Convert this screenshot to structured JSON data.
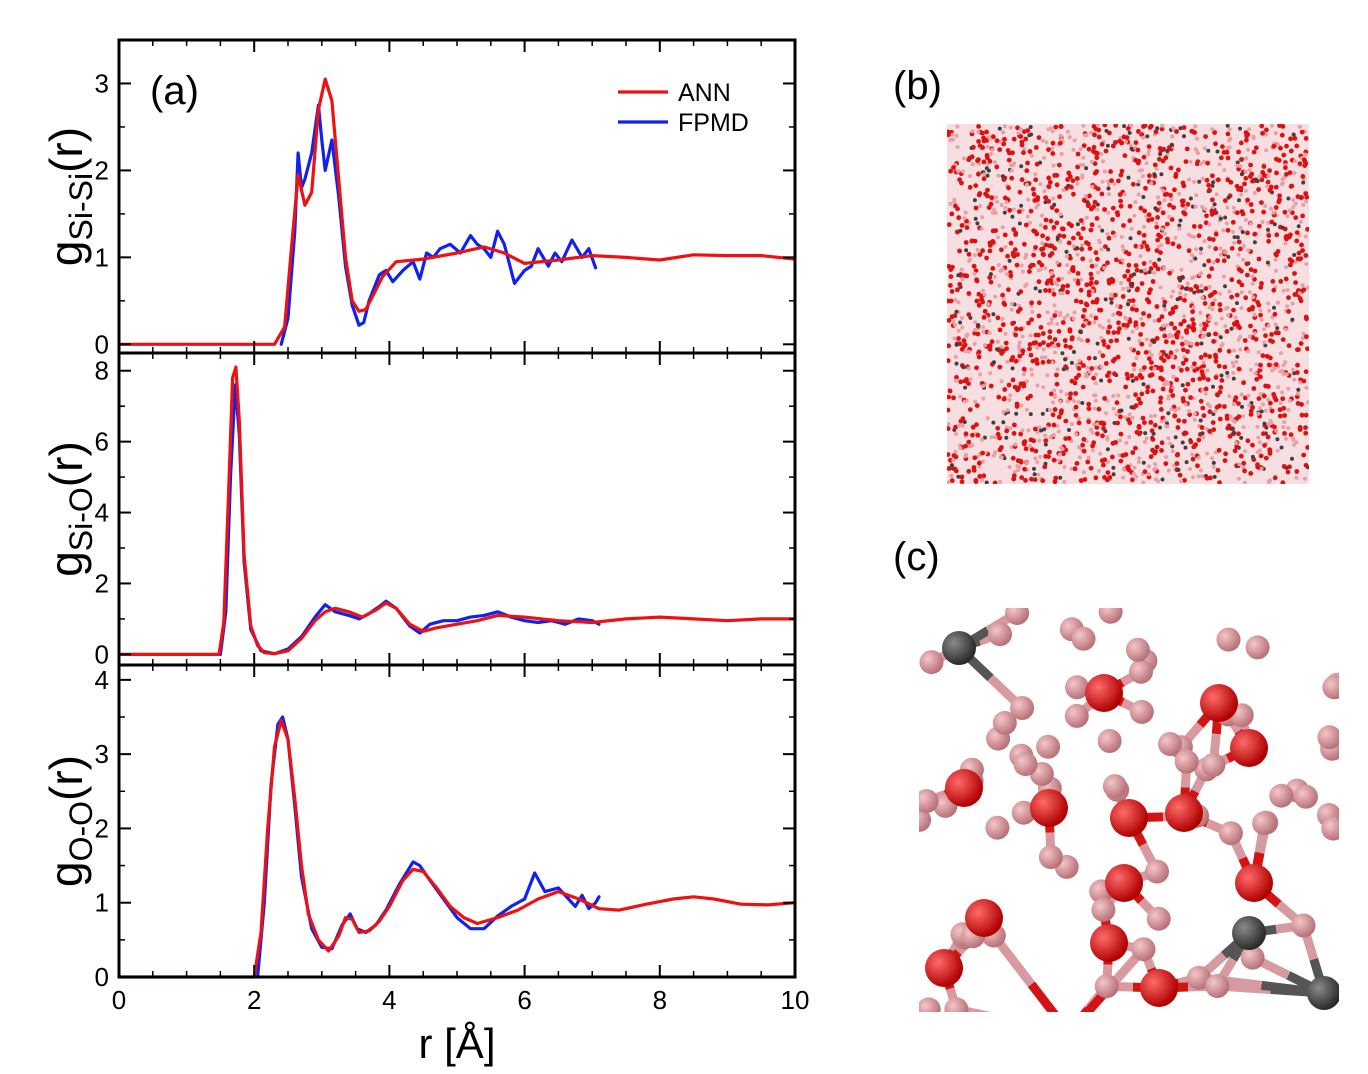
{
  "panels": {
    "a_label": "(a)",
    "b_label": "(b)",
    "c_label": "(c)"
  },
  "legend": {
    "items": [
      "ANN",
      "FPMD"
    ]
  },
  "colors": {
    "ann": "#ee1111",
    "fpmd": "#1122ee",
    "oxygen": "#dd1111",
    "silicon_light": "#e8a0a6",
    "carbon_dark": "#404040"
  },
  "chart_data": [
    {
      "type": "line",
      "panel": "a-top",
      "ylabel_main": "g",
      "ylabel_sub": "Si-Si",
      "ylabel_end": "(r)",
      "xlim": [
        0,
        10
      ],
      "ylim": [
        -0.1,
        3.5
      ],
      "yticks": [
        0,
        1,
        2,
        3
      ],
      "series": [
        {
          "name": "ANN",
          "x": [
            0,
            2.3,
            2.45,
            2.55,
            2.65,
            2.75,
            2.85,
            2.95,
            3.05,
            3.15,
            3.25,
            3.35,
            3.45,
            3.55,
            3.65,
            3.75,
            3.9,
            4.1,
            4.5,
            5.0,
            5.4,
            5.7,
            6.0,
            6.5,
            7.0,
            7.5,
            8.0,
            8.5,
            9.0,
            9.5,
            10.0
          ],
          "y": [
            0,
            0,
            0.2,
            1.1,
            1.95,
            1.6,
            1.75,
            2.7,
            3.05,
            2.8,
            1.9,
            1.0,
            0.5,
            0.38,
            0.4,
            0.55,
            0.78,
            0.95,
            0.98,
            1.05,
            1.12,
            1.05,
            0.93,
            0.97,
            1.02,
            1.0,
            0.97,
            1.03,
            1.02,
            1.02,
            0.98
          ]
        },
        {
          "name": "FPMD",
          "x": [
            2.4,
            2.5,
            2.6,
            2.65,
            2.7,
            2.75,
            2.85,
            2.95,
            3.0,
            3.05,
            3.15,
            3.25,
            3.35,
            3.45,
            3.55,
            3.62,
            3.7,
            3.85,
            3.95,
            4.05,
            4.2,
            4.35,
            4.45,
            4.55,
            4.65,
            4.75,
            4.9,
            5.05,
            5.2,
            5.3,
            5.4,
            5.5,
            5.6,
            5.7,
            5.85,
            6.0,
            6.1,
            6.2,
            6.35,
            6.45,
            6.55,
            6.7,
            6.85,
            6.95,
            7.05
          ],
          "y": [
            0,
            0.3,
            1.3,
            2.2,
            1.8,
            1.9,
            2.2,
            2.75,
            2.35,
            2.0,
            2.35,
            1.7,
            0.9,
            0.45,
            0.22,
            0.25,
            0.5,
            0.8,
            0.85,
            0.72,
            0.85,
            0.95,
            0.75,
            1.05,
            1.0,
            1.1,
            1.15,
            1.05,
            1.25,
            1.15,
            1.1,
            1.0,
            1.3,
            1.15,
            0.7,
            0.85,
            0.9,
            1.1,
            0.9,
            1.05,
            0.95,
            1.2,
            1.0,
            1.1,
            0.88
          ]
        }
      ]
    },
    {
      "type": "line",
      "panel": "a-middle",
      "ylabel_main": "g",
      "ylabel_sub": "Si-O",
      "ylabel_end": "(r)",
      "xlim": [
        0,
        10
      ],
      "ylim": [
        -0.3,
        8.5
      ],
      "yticks": [
        0,
        2,
        4,
        6,
        8
      ],
      "series": [
        {
          "name": "ANN",
          "x": [
            0,
            1.48,
            1.55,
            1.62,
            1.68,
            1.73,
            1.78,
            1.85,
            1.95,
            2.05,
            2.15,
            2.3,
            2.5,
            2.7,
            2.9,
            3.05,
            3.2,
            3.4,
            3.6,
            3.8,
            3.95,
            4.1,
            4.3,
            4.5,
            4.7,
            5.0,
            5.3,
            5.6,
            6.0,
            6.5,
            7.0,
            7.5,
            8.0,
            8.5,
            9.0,
            9.5,
            10.0
          ],
          "y": [
            0,
            0,
            0.9,
            4.5,
            7.8,
            8.1,
            6.6,
            2.8,
            0.8,
            0.25,
            0.05,
            0.02,
            0.1,
            0.45,
            0.95,
            1.2,
            1.3,
            1.2,
            1.05,
            1.25,
            1.45,
            1.3,
            0.85,
            0.65,
            0.75,
            0.85,
            0.95,
            1.1,
            1.05,
            0.95,
            0.9,
            1.0,
            1.05,
            1.0,
            0.95,
            1.0,
            1.0
          ]
        },
        {
          "name": "FPMD",
          "x": [
            1.5,
            1.58,
            1.65,
            1.72,
            1.78,
            1.85,
            1.95,
            2.1,
            2.3,
            2.5,
            2.7,
            2.9,
            3.05,
            3.2,
            3.4,
            3.55,
            3.7,
            3.85,
            3.95,
            4.1,
            4.3,
            4.45,
            4.6,
            4.8,
            5.0,
            5.2,
            5.4,
            5.6,
            5.8,
            6.0,
            6.2,
            6.4,
            6.6,
            6.8,
            7.0,
            7.1
          ],
          "y": [
            0,
            1.2,
            5.0,
            7.6,
            6.2,
            2.6,
            0.7,
            0.1,
            0.02,
            0.15,
            0.5,
            1.05,
            1.4,
            1.2,
            1.1,
            1.0,
            1.15,
            1.35,
            1.5,
            1.3,
            0.8,
            0.6,
            0.85,
            0.95,
            0.95,
            1.05,
            1.1,
            1.2,
            1.05,
            0.95,
            0.9,
            0.95,
            0.85,
            1.0,
            0.95,
            0.85
          ]
        }
      ]
    },
    {
      "type": "line",
      "panel": "a-bottom",
      "ylabel_main": "g",
      "ylabel_sub": "O-O",
      "ylabel_end": "(r)",
      "xlabel": "r [Å]",
      "xlim": [
        0,
        10
      ],
      "ylim": [
        0,
        4.2
      ],
      "yticks": [
        0,
        1,
        2,
        3,
        4
      ],
      "xticks": [
        0,
        2,
        4,
        6,
        8,
        10
      ],
      "series": [
        {
          "name": "ANN",
          "x": [
            0,
            2.0,
            2.1,
            2.2,
            2.3,
            2.4,
            2.5,
            2.6,
            2.7,
            2.8,
            2.95,
            3.1,
            3.25,
            3.35,
            3.45,
            3.55,
            3.7,
            3.85,
            4.0,
            4.2,
            4.35,
            4.5,
            4.7,
            4.9,
            5.1,
            5.3,
            5.6,
            5.9,
            6.2,
            6.5,
            6.8,
            7.1,
            7.4,
            7.8,
            8.2,
            8.5,
            8.8,
            9.2,
            9.6,
            10.0
          ],
          "y": [
            0,
            0,
            0.6,
            2.0,
            3.1,
            3.45,
            3.2,
            2.4,
            1.5,
            0.85,
            0.5,
            0.35,
            0.55,
            0.8,
            0.78,
            0.6,
            0.62,
            0.75,
            0.95,
            1.3,
            1.45,
            1.42,
            1.2,
            0.95,
            0.8,
            0.72,
            0.8,
            0.9,
            1.05,
            1.15,
            1.05,
            0.92,
            0.9,
            0.98,
            1.05,
            1.08,
            1.05,
            0.98,
            0.97,
            1.0
          ]
        },
        {
          "name": "FPMD",
          "x": [
            2.05,
            2.15,
            2.25,
            2.35,
            2.42,
            2.5,
            2.6,
            2.7,
            2.85,
            3.0,
            3.15,
            3.3,
            3.42,
            3.52,
            3.65,
            3.8,
            3.95,
            4.15,
            4.35,
            4.45,
            4.6,
            4.8,
            5.0,
            5.2,
            5.4,
            5.6,
            5.8,
            6.0,
            6.15,
            6.3,
            6.5,
            6.65,
            6.75,
            6.85,
            6.95,
            7.05,
            7.1
          ],
          "y": [
            0,
            1.0,
            2.6,
            3.4,
            3.5,
            3.2,
            2.3,
            1.35,
            0.65,
            0.4,
            0.38,
            0.7,
            0.85,
            0.65,
            0.6,
            0.7,
            0.9,
            1.25,
            1.55,
            1.5,
            1.3,
            1.05,
            0.8,
            0.65,
            0.65,
            0.82,
            0.95,
            1.05,
            1.4,
            1.15,
            1.2,
            1.05,
            0.95,
            1.1,
            0.92,
            1.0,
            1.08
          ]
        }
      ]
    }
  ]
}
